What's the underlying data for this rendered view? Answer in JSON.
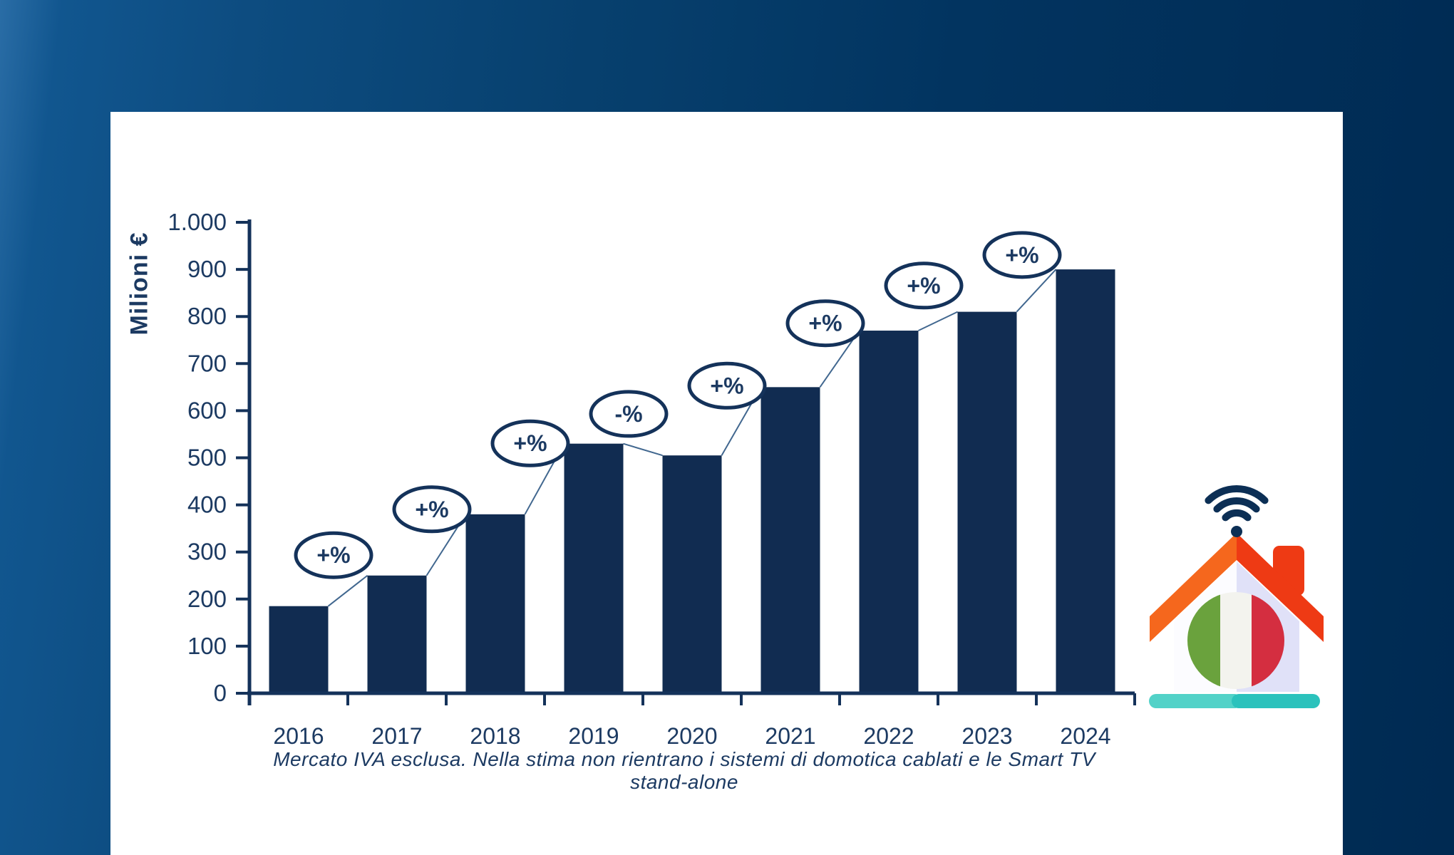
{
  "background": {
    "gradient_left": "#11568f",
    "gradient_right": "#002a52"
  },
  "panel": {
    "background": "#ffffff",
    "footnote": "Mercato IVA esclusa. Nella stima non rientrano i sistemi di domotica cablati e le Smart TV stand-alone"
  },
  "chart_data": {
    "type": "bar",
    "title": "",
    "xlabel": "",
    "ylabel": "Milioni €",
    "categories": [
      "2016",
      "2017",
      "2018",
      "2019",
      "2020",
      "2021",
      "2022",
      "2023",
      "2024"
    ],
    "values": [
      185,
      250,
      380,
      530,
      505,
      650,
      770,
      810,
      900
    ],
    "ylim": [
      0,
      1000
    ],
    "ytick_step": 100,
    "ytick_labels": [
      "0",
      "100",
      "200",
      "300",
      "400",
      "500",
      "600",
      "700",
      "800",
      "900",
      "1.000"
    ],
    "grid": false,
    "legend": null,
    "bar_color": "#112c51",
    "axis_color": "#14325a",
    "text_color": "#1c3a62",
    "connector_color": "#41678f",
    "badge_fill": "#ffffff",
    "growth_badges": [
      {
        "between": [
          "2016",
          "2017"
        ],
        "label": "+%"
      },
      {
        "between": [
          "2017",
          "2018"
        ],
        "label": "+%"
      },
      {
        "between": [
          "2018",
          "2019"
        ],
        "label": "+%"
      },
      {
        "between": [
          "2019",
          "2020"
        ],
        "label": "-%"
      },
      {
        "between": [
          "2020",
          "2021"
        ],
        "label": "+%"
      },
      {
        "between": [
          "2021",
          "2022"
        ],
        "label": "+%"
      },
      {
        "between": [
          "2022",
          "2023"
        ],
        "label": "+%"
      },
      {
        "between": [
          "2023",
          "2024"
        ],
        "label": "+%"
      }
    ]
  },
  "icon": {
    "name": "smart-home-italy",
    "colors": {
      "wifi": "#0c2f55",
      "roof_left": "#f5671d",
      "roof_right": "#ee3a14",
      "chimney": "#ee3a14",
      "wall_left": "#fcfcff",
      "wall_right": "#e0e1f8",
      "flag_green": "#6aa23d",
      "flag_white": "#f3f3ee",
      "flag_red": "#d42e40",
      "base_left": "#52d2c8",
      "base_right": "#2bc2bc"
    }
  }
}
